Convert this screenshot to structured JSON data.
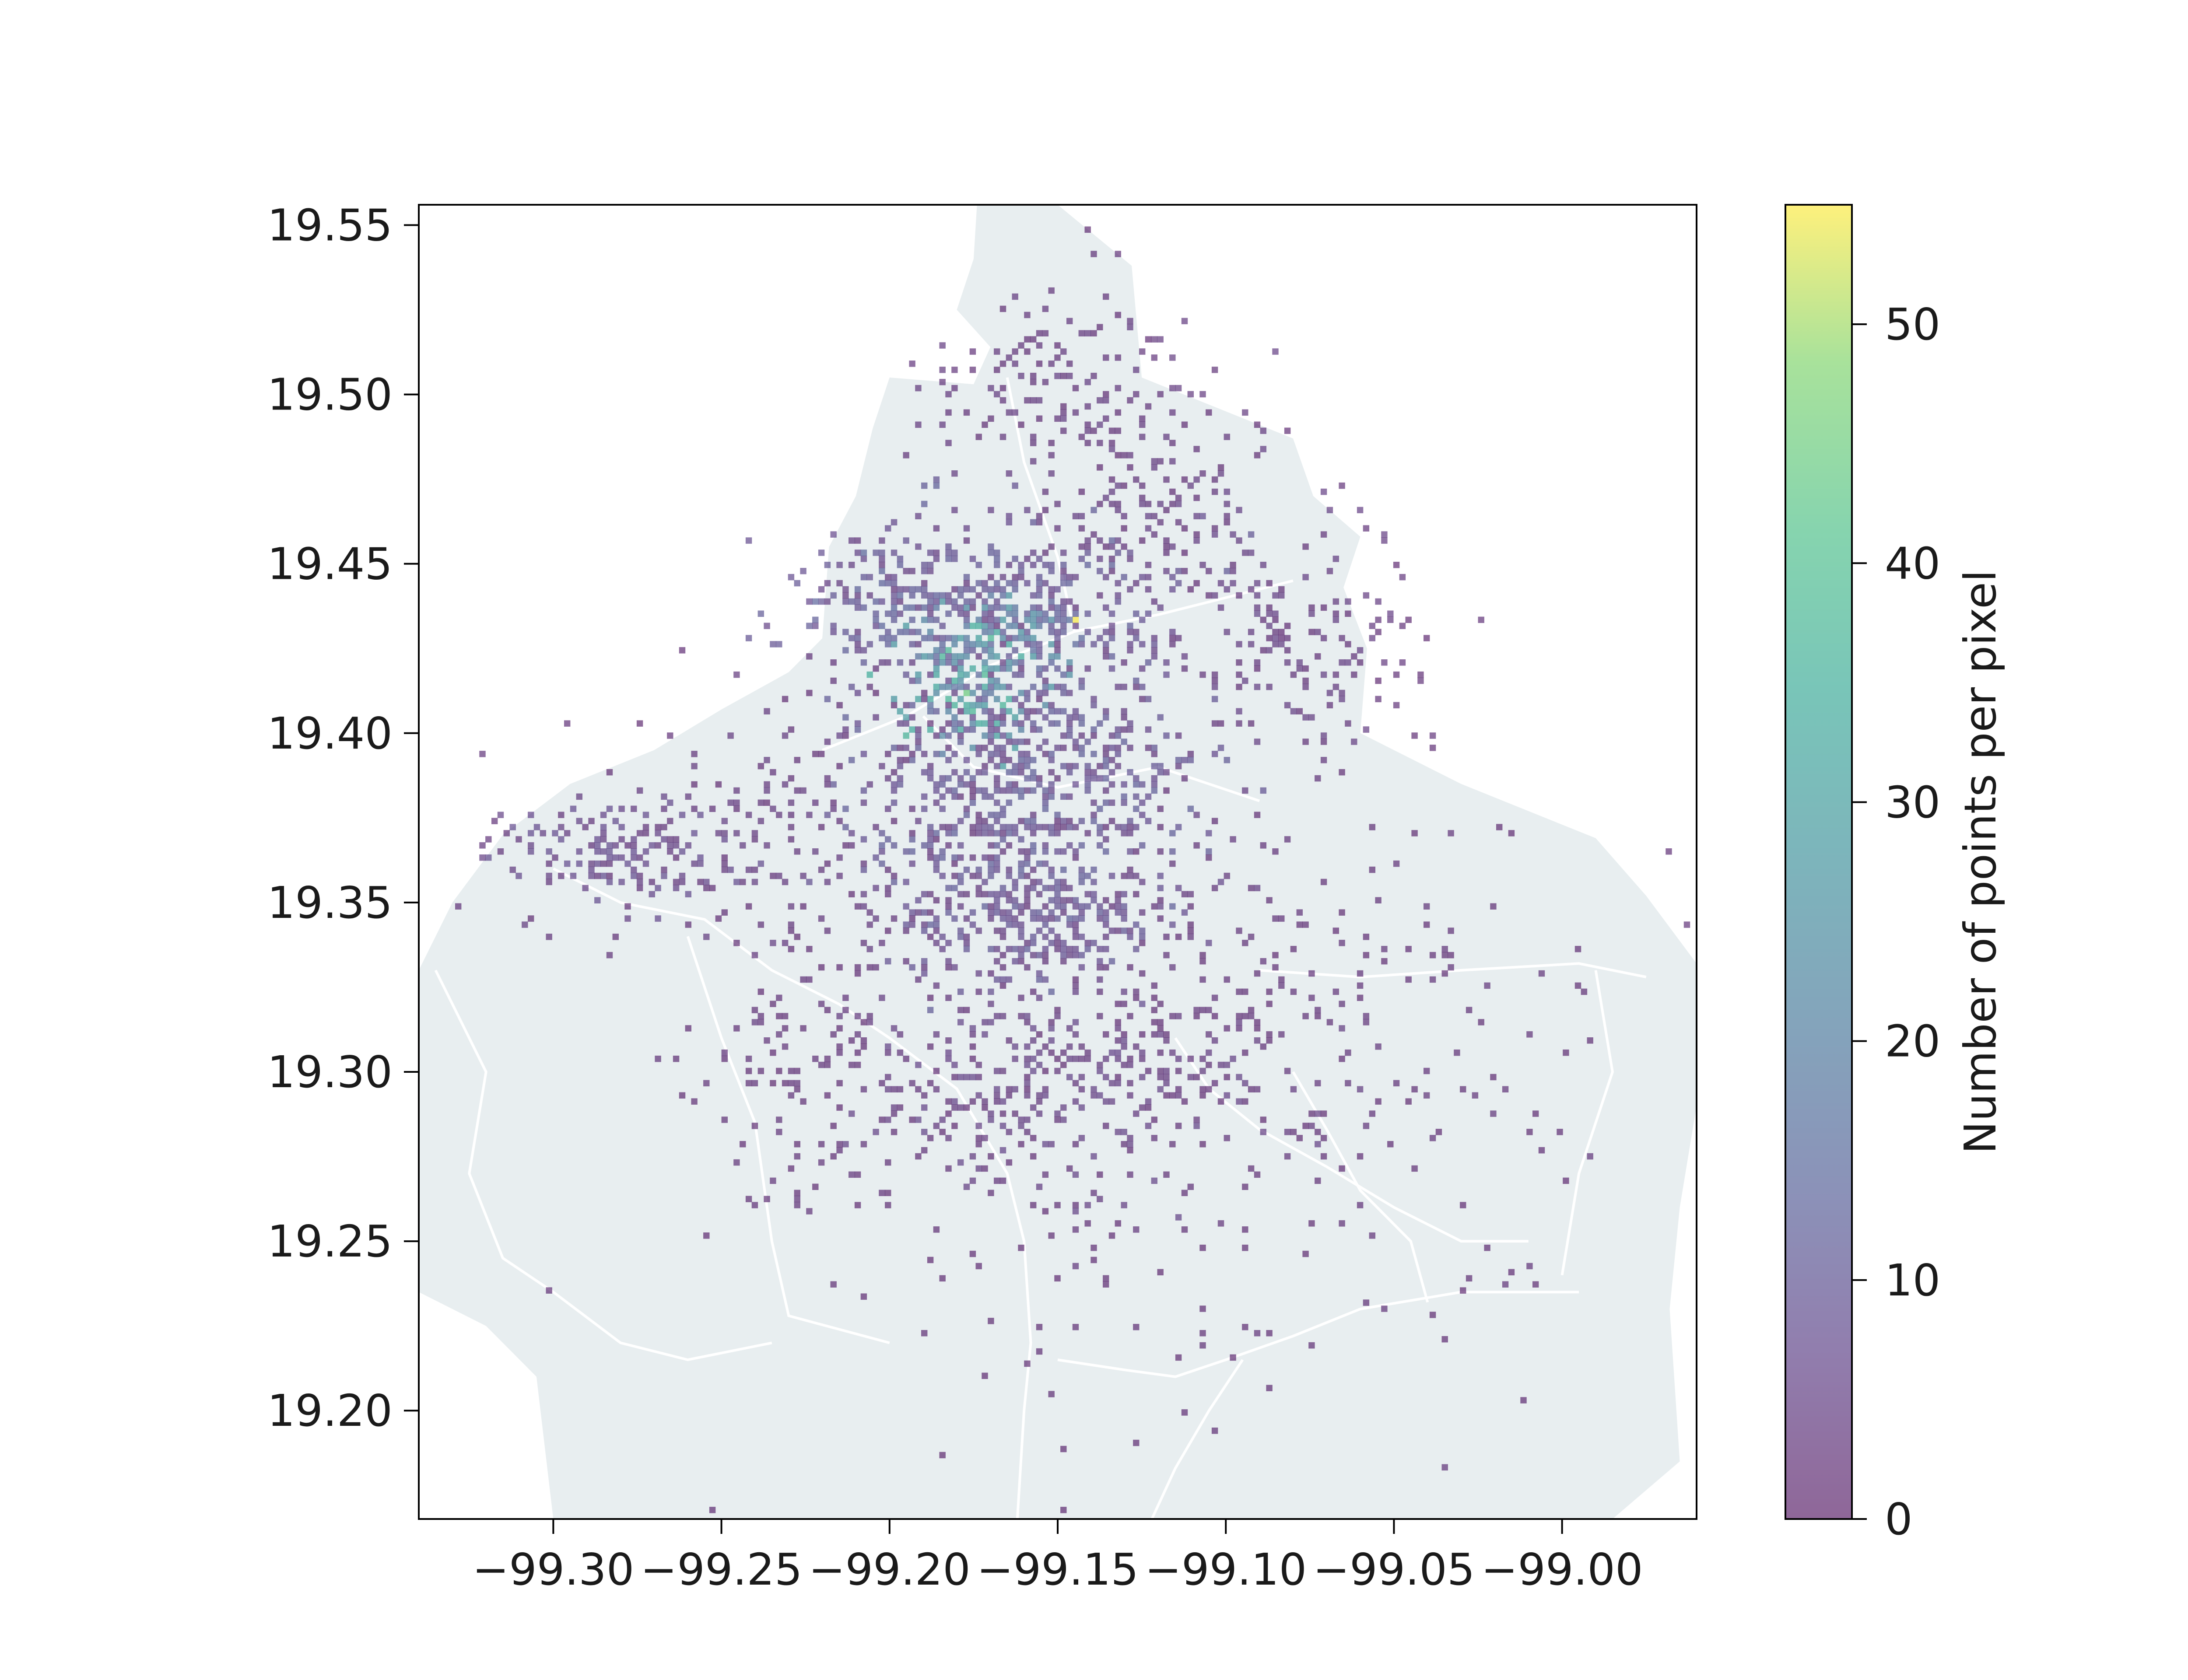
{
  "chart_data": {
    "type": "heatmap",
    "title": "",
    "xlabel": "",
    "ylabel": "",
    "xlim": [
      -99.34,
      -98.96
    ],
    "ylim": [
      19.168,
      19.556
    ],
    "x_ticks": [
      -99.3,
      -99.25,
      -99.2,
      -99.15,
      -99.1,
      -99.05,
      -99.0
    ],
    "x_tick_labels": [
      "−99.30",
      "−99.25",
      "−99.20",
      "−99.15",
      "−99.10",
      "−99.05",
      "−99.00"
    ],
    "y_ticks": [
      19.2,
      19.25,
      19.3,
      19.35,
      19.4,
      19.45,
      19.5,
      19.55
    ],
    "y_tick_labels": [
      "19.20",
      "19.25",
      "19.30",
      "19.35",
      "19.40",
      "19.45",
      "19.50",
      "19.55"
    ],
    "grid": false,
    "colorbar": {
      "label": "Number of points per pixel",
      "range": [
        0,
        55
      ],
      "ticks": [
        0,
        10,
        20,
        30,
        40,
        50
      ],
      "tick_labels": [
        "0",
        "10",
        "20",
        "30",
        "40",
        "50"
      ],
      "colormap": "viridis",
      "alpha": 0.6
    },
    "basemap": {
      "region_fill": "#e8eef0",
      "boundary_color": "#ffffff",
      "outline": [
        [
          -99.174,
          19.556
        ],
        [
          -99.15,
          19.556
        ],
        [
          -99.128,
          19.538
        ],
        [
          -99.125,
          19.505
        ],
        [
          -99.1,
          19.495
        ],
        [
          -99.08,
          19.487
        ],
        [
          -99.074,
          19.47
        ],
        [
          -99.06,
          19.458
        ],
        [
          -99.065,
          19.443
        ],
        [
          -99.058,
          19.425
        ],
        [
          -99.06,
          19.4
        ],
        [
          -99.03,
          19.385
        ],
        [
          -98.99,
          19.369
        ],
        [
          -98.975,
          19.352
        ],
        [
          -98.96,
          19.332
        ],
        [
          -98.96,
          19.29
        ],
        [
          -98.965,
          19.26
        ],
        [
          -98.968,
          19.23
        ],
        [
          -98.965,
          19.185
        ],
        [
          -98.985,
          19.168
        ],
        [
          -99.3,
          19.168
        ],
        [
          -99.305,
          19.21
        ],
        [
          -99.32,
          19.225
        ],
        [
          -99.34,
          19.235
        ],
        [
          -99.34,
          19.33
        ],
        [
          -99.33,
          19.35
        ],
        [
          -99.315,
          19.37
        ],
        [
          -99.295,
          19.385
        ],
        [
          -99.27,
          19.395
        ],
        [
          -99.25,
          19.407
        ],
        [
          -99.23,
          19.418
        ],
        [
          -99.22,
          19.428
        ],
        [
          -99.218,
          19.455
        ],
        [
          -99.21,
          19.47
        ],
        [
          -99.205,
          19.49
        ],
        [
          -99.2,
          19.505
        ],
        [
          -99.175,
          19.503
        ],
        [
          -99.17,
          19.514
        ],
        [
          -99.18,
          19.525
        ],
        [
          -99.175,
          19.54
        ]
      ],
      "boundaries": [
        [
          [
            -99.165,
            19.505
          ],
          [
            -99.16,
            19.48
          ],
          [
            -99.15,
            19.452
          ],
          [
            -99.145,
            19.43
          ]
        ],
        [
          [
            -99.145,
            19.43
          ],
          [
            -99.12,
            19.435
          ],
          [
            -99.1,
            19.44
          ],
          [
            -99.08,
            19.445
          ]
        ],
        [
          [
            -99.145,
            19.43
          ],
          [
            -99.17,
            19.42
          ],
          [
            -99.195,
            19.405
          ],
          [
            -99.22,
            19.395
          ]
        ],
        [
          [
            -99.19,
            19.405
          ],
          [
            -99.175,
            19.39
          ],
          [
            -99.15,
            19.384
          ],
          [
            -99.12,
            19.39
          ],
          [
            -99.09,
            19.38
          ]
        ],
        [
          [
            -99.3,
            19.36
          ],
          [
            -99.28,
            19.35
          ],
          [
            -99.255,
            19.345
          ],
          [
            -99.235,
            19.33
          ],
          [
            -99.215,
            19.32
          ],
          [
            -99.2,
            19.31
          ]
        ],
        [
          [
            -99.26,
            19.34
          ],
          [
            -99.25,
            19.31
          ],
          [
            -99.24,
            19.285
          ],
          [
            -99.235,
            19.25
          ],
          [
            -99.23,
            19.228
          ],
          [
            -99.2,
            19.22
          ]
        ],
        [
          [
            -99.335,
            19.33
          ],
          [
            -99.32,
            19.3
          ],
          [
            -99.325,
            19.27
          ],
          [
            -99.315,
            19.245
          ],
          [
            -99.3,
            19.235
          ]
        ],
        [
          [
            -99.3,
            19.235
          ],
          [
            -99.28,
            19.22
          ],
          [
            -99.26,
            19.215
          ],
          [
            -99.235,
            19.22
          ]
        ],
        [
          [
            -99.2,
            19.31
          ],
          [
            -99.18,
            19.295
          ],
          [
            -99.165,
            19.27
          ],
          [
            -99.16,
            19.25
          ],
          [
            -99.158,
            19.22
          ],
          [
            -99.16,
            19.2
          ],
          [
            -99.162,
            19.168
          ]
        ],
        [
          [
            -99.15,
            19.215
          ],
          [
            -99.13,
            19.212
          ],
          [
            -99.115,
            19.21
          ],
          [
            -99.1,
            19.215
          ],
          [
            -99.08,
            19.222
          ],
          [
            -99.06,
            19.23
          ],
          [
            -99.03,
            19.235
          ],
          [
            -98.995,
            19.235
          ]
        ],
        [
          [
            -99.115,
            19.31
          ],
          [
            -99.105,
            19.295
          ],
          [
            -99.09,
            19.283
          ],
          [
            -99.07,
            19.272
          ],
          [
            -99.05,
            19.26
          ],
          [
            -99.03,
            19.25
          ],
          [
            -99.01,
            19.25
          ]
        ],
        [
          [
            -99.09,
            19.33
          ],
          [
            -99.06,
            19.328
          ],
          [
            -99.03,
            19.33
          ],
          [
            -98.995,
            19.332
          ],
          [
            -98.975,
            19.328
          ]
        ],
        [
          [
            -99.095,
            19.215
          ],
          [
            -99.105,
            19.2
          ],
          [
            -99.115,
            19.183
          ],
          [
            -99.122,
            19.168
          ]
        ],
        [
          [
            -99.04,
            19.232
          ],
          [
            -99.045,
            19.25
          ],
          [
            -99.06,
            19.265
          ],
          [
            -99.07,
            19.283
          ],
          [
            -99.08,
            19.3
          ]
        ],
        [
          [
            -98.99,
            19.33
          ],
          [
            -98.985,
            19.3
          ],
          [
            -98.995,
            19.27
          ],
          [
            -99.0,
            19.24
          ]
        ]
      ]
    },
    "hotspots": [
      {
        "lon": -99.15,
        "lat": 19.505,
        "sx": 0.02,
        "sy": 0.015,
        "n": 120,
        "cmin": 1,
        "cmax": 4
      },
      {
        "lon": -99.12,
        "lat": 19.47,
        "sx": 0.02,
        "sy": 0.02,
        "n": 160,
        "cmin": 1,
        "cmax": 5
      },
      {
        "lon": -99.17,
        "lat": 19.44,
        "sx": 0.025,
        "sy": 0.012,
        "n": 320,
        "cmin": 2,
        "cmax": 12
      },
      {
        "lon": -99.205,
        "lat": 19.437,
        "sx": 0.015,
        "sy": 0.008,
        "n": 90,
        "cmin": 3,
        "cmax": 14
      },
      {
        "lon": -99.165,
        "lat": 19.428,
        "sx": 0.012,
        "sy": 0.008,
        "n": 110,
        "cmin": 8,
        "cmax": 28
      },
      {
        "lon": -99.178,
        "lat": 19.415,
        "sx": 0.01,
        "sy": 0.01,
        "n": 120,
        "cmin": 12,
        "cmax": 38
      },
      {
        "lon": -99.16,
        "lat": 19.385,
        "sx": 0.025,
        "sy": 0.025,
        "n": 700,
        "cmin": 2,
        "cmax": 12
      },
      {
        "lon": -99.155,
        "lat": 19.345,
        "sx": 0.022,
        "sy": 0.008,
        "n": 220,
        "cmin": 2,
        "cmax": 10
      },
      {
        "lon": -99.08,
        "lat": 19.425,
        "sx": 0.02,
        "sy": 0.015,
        "n": 150,
        "cmin": 1,
        "cmax": 5
      },
      {
        "lon": -99.28,
        "lat": 19.365,
        "sx": 0.02,
        "sy": 0.008,
        "n": 160,
        "cmin": 2,
        "cmax": 8
      },
      {
        "lon": -99.22,
        "lat": 19.37,
        "sx": 0.035,
        "sy": 0.025,
        "n": 220,
        "cmin": 1,
        "cmax": 4
      },
      {
        "lon": -99.15,
        "lat": 19.295,
        "sx": 0.03,
        "sy": 0.015,
        "n": 320,
        "cmin": 1,
        "cmax": 6
      },
      {
        "lon": -99.1,
        "lat": 19.33,
        "sx": 0.04,
        "sy": 0.03,
        "n": 160,
        "cmin": 1,
        "cmax": 3
      },
      {
        "lon": -99.22,
        "lat": 19.3,
        "sx": 0.02,
        "sy": 0.02,
        "n": 110,
        "cmin": 1,
        "cmax": 3
      },
      {
        "lon": -99.05,
        "lat": 19.3,
        "sx": 0.04,
        "sy": 0.04,
        "n": 90,
        "cmin": 1,
        "cmax": 3
      },
      {
        "lon": -99.15,
        "lat": 19.24,
        "sx": 0.06,
        "sy": 0.03,
        "n": 80,
        "cmin": 1,
        "cmax": 2
      }
    ],
    "peaks": [
      {
        "lon": -99.144,
        "lat": 19.434,
        "count": 55
      },
      {
        "lon": -99.177,
        "lat": 19.412,
        "count": 45
      },
      {
        "lon": -99.172,
        "lat": 19.418,
        "count": 38
      },
      {
        "lon": -99.18,
        "lat": 19.408,
        "count": 36
      },
      {
        "lon": -99.168,
        "lat": 19.43,
        "count": 33
      }
    ]
  }
}
